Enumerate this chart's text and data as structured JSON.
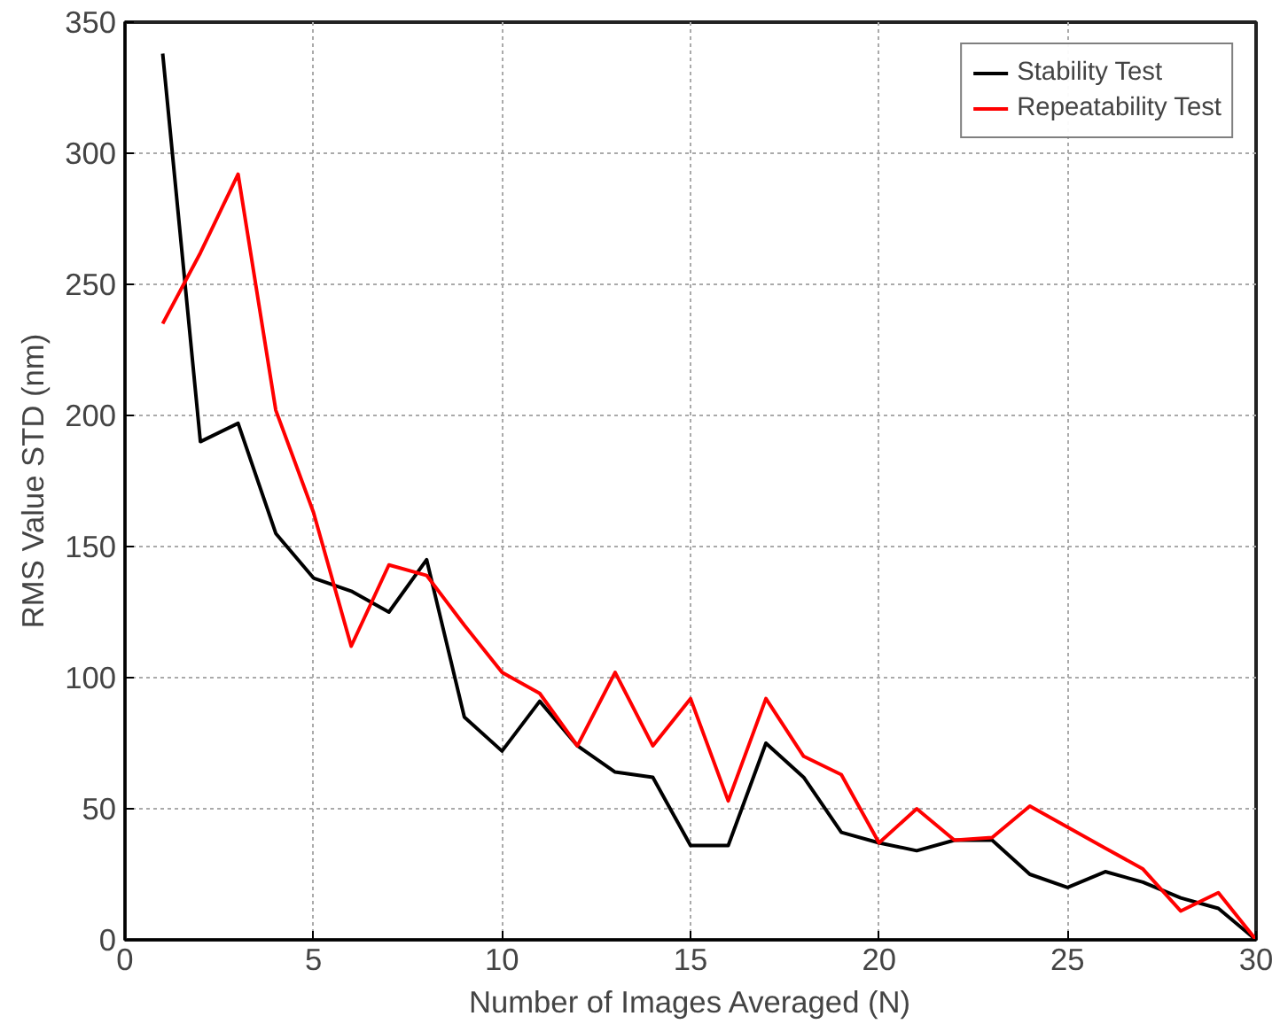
{
  "chart_data": {
    "type": "line",
    "xlabel": "Number of Images Averaged (N)",
    "ylabel": "RMS Value STD (nm)",
    "x": [
      1,
      2,
      3,
      4,
      5,
      6,
      7,
      8,
      9,
      10,
      11,
      12,
      13,
      14,
      15,
      16,
      17,
      18,
      19,
      20,
      21,
      22,
      23,
      24,
      25,
      26,
      27,
      28,
      29,
      30
    ],
    "series": [
      {
        "name": "Stability Test",
        "color": "#000000",
        "values": [
          338,
          190,
          197,
          155,
          138,
          133,
          125,
          145,
          85,
          72,
          91,
          74,
          64,
          62,
          36,
          36,
          75,
          62,
          41,
          37,
          34,
          38,
          38,
          25,
          20,
          26,
          22,
          16,
          12,
          0
        ]
      },
      {
        "name": "Repeatability Test",
        "color": "#ff0000",
        "values": [
          235,
          262,
          292,
          202,
          163,
          112,
          143,
          139,
          120,
          102,
          94,
          74,
          102,
          74,
          92,
          53,
          92,
          70,
          63,
          37,
          50,
          38,
          39,
          51,
          43,
          35,
          27,
          11,
          18,
          0
        ]
      }
    ],
    "xlim": [
      0,
      30
    ],
    "xticks": [
      0,
      5,
      10,
      15,
      20,
      25,
      30
    ],
    "ylim": [
      0,
      350
    ],
    "yticks": [
      0,
      50,
      100,
      150,
      200,
      250,
      300,
      350
    ],
    "grid": true,
    "legend": "top right",
    "line_style": "solid",
    "marker": "none"
  }
}
